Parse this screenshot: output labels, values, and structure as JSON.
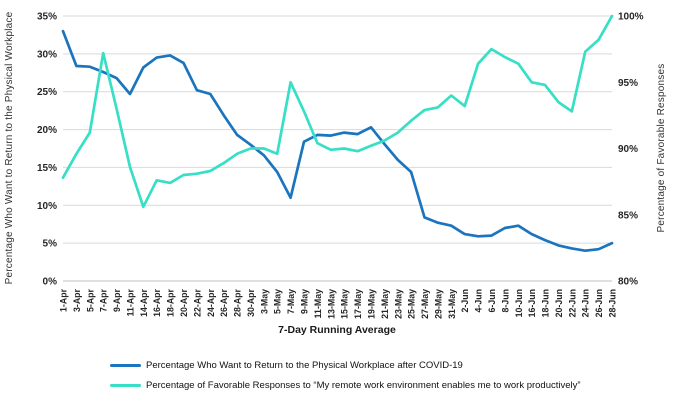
{
  "chart_data": {
    "type": "line",
    "title": "",
    "x_title": "7-Day Running Average",
    "grid": true,
    "legend_position": "bottom",
    "categories": [
      "1-Apr",
      "3-Apr",
      "5-Apr",
      "7-Apr",
      "9-Apr",
      "11-Apr",
      "14-Apr",
      "16-Apr",
      "18-Apr",
      "20-Apr",
      "22-Apr",
      "24-Apr",
      "26-Apr",
      "28-Apr",
      "30-Apr",
      "3-May",
      "5-May",
      "7-May",
      "9-May",
      "11-May",
      "13-May",
      "15-May",
      "17-May",
      "19-May",
      "21-May",
      "23-May",
      "25-May",
      "27-May",
      "29-May",
      "31-May",
      "2-Jun",
      "4-Jun",
      "6-Jun",
      "8-Jun",
      "10-Jun",
      "16-Jun",
      "18-Jun",
      "20-Jun",
      "22-Jun",
      "24-Jun",
      "26-Jun",
      "28-Jun"
    ],
    "left_axis": {
      "title": "Percentage Who Want to Return to the Physical Workplace",
      "min": 0,
      "max": 35,
      "step": 5,
      "tick_suffix": "%"
    },
    "right_axis": {
      "title": "Percentage of Favorable Responses",
      "min": 80,
      "max": 100,
      "step": 5,
      "tick_suffix": "%"
    },
    "series": [
      {
        "name": "Percentage Who Want to Return to the Physical Workplace after COVID-19",
        "axis": "left",
        "color": "#1B74BE",
        "values": [
          33.0,
          28.4,
          28.3,
          27.6,
          26.8,
          24.7,
          28.2,
          29.5,
          29.8,
          28.8,
          25.2,
          24.7,
          21.9,
          19.3,
          18.0,
          16.6,
          14.4,
          11.0,
          18.4,
          19.3,
          19.2,
          19.6,
          19.4,
          20.3,
          18.1,
          16.0,
          14.4,
          8.4,
          7.7,
          7.3,
          6.2,
          5.9,
          6.0,
          7.0,
          7.3,
          6.2,
          5.4,
          4.7,
          4.3,
          4.0,
          4.2,
          5.0
        ]
      },
      {
        "name": "Percentage of Favorable Responses to “My remote work environment enables me to work productively”",
        "axis": "right",
        "color": "#36DFC5",
        "values": [
          87.8,
          89.6,
          91.2,
          97.2,
          93.0,
          88.6,
          85.6,
          87.6,
          87.4,
          88.0,
          88.1,
          88.3,
          88.9,
          89.6,
          90.0,
          90.0,
          89.6,
          95.0,
          92.8,
          90.4,
          89.9,
          90.0,
          89.8,
          90.2,
          90.6,
          91.2,
          92.1,
          92.9,
          93.1,
          94.0,
          93.2,
          96.4,
          97.5,
          96.9,
          96.4,
          95.0,
          94.8,
          93.5,
          92.8,
          97.3,
          98.2,
          100.0
        ]
      }
    ],
    "style": {
      "gridline_color": "#D9D9D9",
      "axisline_color": "#BFBFBF"
    }
  }
}
